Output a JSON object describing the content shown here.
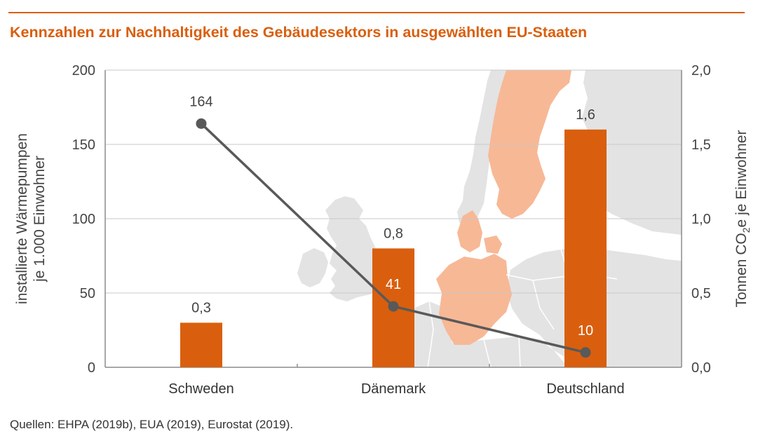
{
  "title": "Kennzahlen zur Nachhaltigkeit des Gebäudesektors in ausgewählten EU-Staaten",
  "source": "Quellen: EHPA (2019b), EUA (2019), Eurostat (2019).",
  "colors": {
    "accent": "#d95f0e",
    "bar": "#d95f0e",
    "line": "#595959",
    "map_land": "#e3e3e3",
    "map_highlight": "#f7b896"
  },
  "chart_data": {
    "type": "bar",
    "categories": [
      "Schweden",
      "Dänemark",
      "Deutschland"
    ],
    "ylabel_left_line1": "installierte Wärmepumpen",
    "ylabel_left_line2": "je 1.000 Einwohner",
    "ylabel_right_prefix": "Tonnen CO",
    "ylabel_right_sub": "2",
    "ylabel_right_suffix": "e je Einwohner",
    "yticks_left": [
      "0",
      "50",
      "100",
      "150",
      "200"
    ],
    "yticks_right": [
      "0,0",
      "0,5",
      "1,0",
      "1,5",
      "2,0"
    ],
    "ylim_left": [
      0,
      200
    ],
    "ylim_right": [
      0,
      2.0
    ],
    "grid": true,
    "series": [
      {
        "type": "bar",
        "axis": "right",
        "values": [
          0.3,
          0.8,
          1.6
        ],
        "labels": [
          "0,3",
          "0,8",
          "1,6"
        ]
      },
      {
        "type": "line",
        "axis": "left",
        "values": [
          164,
          41,
          10
        ],
        "labels": [
          "164",
          "41",
          "10"
        ]
      }
    ]
  }
}
